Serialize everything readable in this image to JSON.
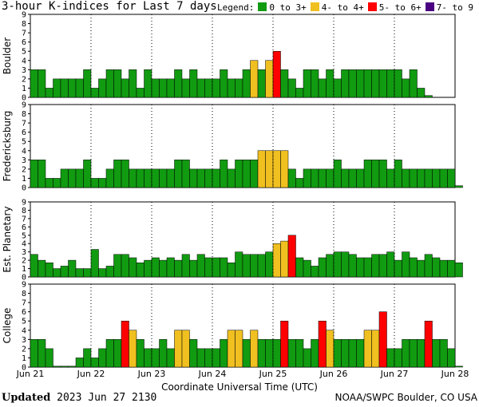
{
  "title": "3-hour K-indices for Last 7 days",
  "legend": {
    "label": "Legend:",
    "items": [
      {
        "label": "0 to 3+",
        "color": "#119b11"
      },
      {
        "label": "4- to 4+",
        "color": "#f0c020"
      },
      {
        "label": "5- to 6+",
        "color": "#ff0000"
      },
      {
        "label": "7- to 9",
        "color": "#4b0082"
      }
    ]
  },
  "footer": {
    "updated_label": "Updated",
    "updated_value": "2023 Jun 27 2130",
    "source": "NOAA/SWPC Boulder, CO USA"
  },
  "chart_data": {
    "type": "bar",
    "xlabel": "Coordinate Universal Time (UTC)",
    "x_ticks": [
      "Jun 21",
      "Jun 22",
      "Jun 23",
      "Jun 24",
      "Jun 25",
      "Jun 26",
      "Jun 27",
      "Jun 28"
    ],
    "ylim": [
      0,
      9
    ],
    "y_ticks": [
      0,
      1,
      2,
      3,
      4,
      5,
      6,
      7,
      8,
      9
    ],
    "grid": "dotted",
    "bars_per_day": 8,
    "panels": [
      {
        "label": "Boulder",
        "values": [
          3,
          3,
          1,
          2,
          2,
          2,
          2,
          3,
          1,
          2,
          3,
          3,
          2,
          3,
          1,
          3,
          2,
          2,
          2,
          3,
          2,
          3,
          2,
          2,
          2,
          3,
          2,
          2,
          3,
          4,
          3,
          4,
          5,
          3,
          2,
          1,
          3,
          3,
          2,
          3,
          2,
          3,
          3,
          3,
          3,
          3,
          3,
          3,
          3,
          2,
          3,
          1,
          0.2
        ]
      },
      {
        "label": "Fredericksburg",
        "values": [
          3,
          3,
          1,
          1,
          2,
          2,
          2,
          3,
          1,
          1,
          2,
          3,
          3,
          2,
          2,
          2,
          2,
          2,
          2,
          3,
          3,
          2,
          2,
          2,
          2,
          3,
          2,
          3,
          3,
          3,
          4,
          4,
          4,
          4,
          2,
          1,
          2,
          2,
          2,
          2,
          3,
          2,
          2,
          2,
          3,
          3,
          3,
          2,
          3,
          2,
          2,
          2,
          2,
          2,
          2,
          2,
          0.2
        ]
      },
      {
        "label": "Est. Planetary",
        "values": [
          2.7,
          2,
          1.7,
          1,
          1.3,
          2,
          1,
          1,
          3.3,
          1,
          1.3,
          2.7,
          2.7,
          2.3,
          1.7,
          2,
          2.3,
          2,
          2.3,
          2,
          2.7,
          2,
          2.7,
          2.3,
          2.3,
          2.3,
          1.7,
          3,
          2.7,
          2.7,
          2.7,
          3,
          4,
          4.3,
          5,
          2.3,
          2,
          1.3,
          2.3,
          2.7,
          3,
          3,
          2.7,
          2.3,
          2.3,
          2.7,
          2.7,
          3,
          2,
          3,
          2.3,
          2,
          2.7,
          2.3,
          2,
          2,
          1.7
        ]
      },
      {
        "label": "College",
        "values": [
          3,
          3,
          2,
          0.1,
          0.1,
          0.1,
          1,
          2,
          1,
          2,
          3,
          3,
          5,
          4,
          3,
          2,
          2,
          3,
          2,
          4,
          4,
          3,
          2,
          2,
          2,
          3,
          4,
          4,
          3,
          4,
          3,
          3,
          3,
          5,
          3,
          3,
          2,
          3,
          5,
          4,
          3,
          3,
          3,
          3,
          4,
          4,
          6,
          2,
          2,
          3,
          3,
          3,
          5,
          3,
          3,
          2,
          0.1
        ]
      }
    ]
  }
}
